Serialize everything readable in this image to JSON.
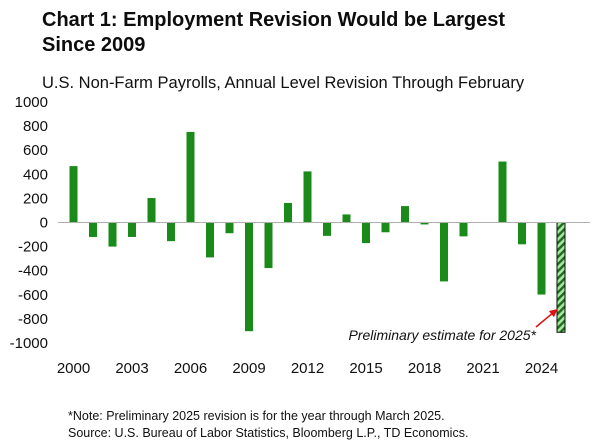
{
  "header": {
    "title_line1": "Chart 1: Employment Revision Would be Largest",
    "title_line2": "Since 2009"
  },
  "chart_data": {
    "type": "bar",
    "title": "Chart 1: Employment Revision Would be Largest Since 2009",
    "subtitle": "U.S. Non-Farm Payrolls, Annual Level Revision Through February",
    "categories": [
      2000,
      2001,
      2002,
      2003,
      2004,
      2005,
      2006,
      2007,
      2008,
      2009,
      2010,
      2011,
      2012,
      2013,
      2014,
      2015,
      2016,
      2017,
      2018,
      2019,
      2020,
      2021,
      2022,
      2023,
      2024,
      2025
    ],
    "values": [
      468,
      -120,
      -200,
      -120,
      203,
      -155,
      752,
      -290,
      -89,
      -902,
      -378,
      162,
      424,
      -111,
      67,
      -171,
      -81,
      136,
      -16,
      -489,
      -115,
      0,
      506,
      -181,
      -598,
      -911
    ],
    "series": [
      {
        "name": "Annual level revision",
        "color": "#1a8a1a"
      },
      {
        "name": "Preliminary estimate for 2025*",
        "color": "#2ca02c",
        "pattern": "hatched"
      }
    ],
    "preliminary_index": 25,
    "ylim": [
      -1000,
      1000
    ],
    "yticks": [
      1000,
      800,
      600,
      400,
      200,
      0,
      -200,
      -400,
      -600,
      -800,
      -1000
    ],
    "xticks": [
      2000,
      2003,
      2006,
      2009,
      2012,
      2015,
      2018,
      2021,
      2024
    ],
    "annotation": "Preliminary estimate for 2025*",
    "grid": false,
    "xlabel": "",
    "ylabel": ""
  },
  "notes": {
    "note": "*Note: Preliminary 2025 revision is for the year through March 2025.",
    "source": "Source: U.S. Bureau of Labor Statistics, Bloomberg L.P., TD Economics."
  },
  "colors": {
    "bar": "#1a8a1a",
    "hatch_dark": "#1f6b1f",
    "hatch_light": "#a8e6a0",
    "arrow": "#e01010"
  }
}
